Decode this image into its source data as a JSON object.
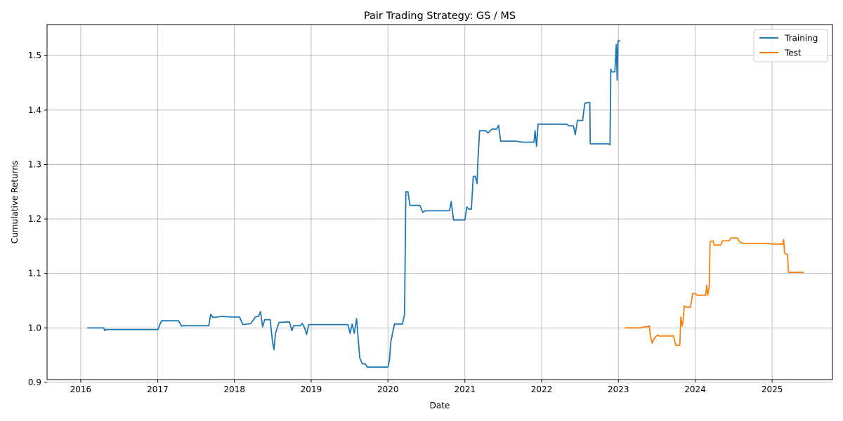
{
  "chart_data": {
    "type": "line",
    "title": "Pair Trading Strategy: GS / MS",
    "xlabel": "Date",
    "ylabel": "Cumulative Returns",
    "xlim": [
      "2015-07-25",
      "2025-10-15"
    ],
    "ylim": [
      0.905,
      1.557
    ],
    "x_ticks": [
      "2016",
      "2017",
      "2018",
      "2019",
      "2020",
      "2021",
      "2022",
      "2023",
      "2024",
      "2025"
    ],
    "y_ticks": [
      "0.9",
      "1.0",
      "1.1",
      "1.2",
      "1.3",
      "1.4",
      "1.5"
    ],
    "grid": true,
    "legend_position": "top-right",
    "series": [
      {
        "name": "Training",
        "color": "#1f77b4",
        "points": [
          [
            "2016-02-01",
            1.0
          ],
          [
            "2016-04-20",
            1.0
          ],
          [
            "2016-04-25",
            0.995
          ],
          [
            "2016-05-01",
            0.997
          ],
          [
            "2016-12-01",
            0.997
          ],
          [
            "2017-01-03",
            0.997
          ],
          [
            "2017-01-10",
            1.005
          ],
          [
            "2017-01-20",
            1.013
          ],
          [
            "2017-04-10",
            1.013
          ],
          [
            "2017-04-25",
            1.003
          ],
          [
            "2017-05-01",
            1.004
          ],
          [
            "2017-09-01",
            1.004
          ],
          [
            "2017-09-10",
            1.025
          ],
          [
            "2017-09-20",
            1.019
          ],
          [
            "2017-11-01",
            1.021
          ],
          [
            "2017-12-20",
            1.02
          ],
          [
            "2018-01-25",
            1.02
          ],
          [
            "2018-02-10",
            1.006
          ],
          [
            "2018-03-20",
            1.008
          ],
          [
            "2018-04-10",
            1.02
          ],
          [
            "2018-04-25",
            1.021
          ],
          [
            "2018-05-05",
            1.03
          ],
          [
            "2018-05-15",
            1.002
          ],
          [
            "2018-05-25",
            1.015
          ],
          [
            "2018-06-20",
            1.015
          ],
          [
            "2018-07-01",
            0.975
          ],
          [
            "2018-07-08",
            0.96
          ],
          [
            "2018-07-15",
            0.99
          ],
          [
            "2018-08-01",
            1.01
          ],
          [
            "2018-09-20",
            1.011
          ],
          [
            "2018-10-01",
            0.995
          ],
          [
            "2018-10-10",
            1.004
          ],
          [
            "2018-11-10",
            1.004
          ],
          [
            "2018-11-20",
            1.008
          ],
          [
            "2018-12-01",
            1.0
          ],
          [
            "2018-12-10",
            0.988
          ],
          [
            "2018-12-20",
            1.006
          ],
          [
            "2019-06-25",
            1.006
          ],
          [
            "2019-07-05",
            0.99
          ],
          [
            "2019-07-15",
            1.007
          ],
          [
            "2019-07-25",
            0.99
          ],
          [
            "2019-08-05",
            1.017
          ],
          [
            "2019-08-20",
            0.945
          ],
          [
            "2019-09-01",
            0.934
          ],
          [
            "2019-09-15",
            0.934
          ],
          [
            "2019-09-25",
            0.928
          ],
          [
            "2020-01-01",
            0.928
          ],
          [
            "2020-01-08",
            0.94
          ],
          [
            "2020-01-15",
            0.975
          ],
          [
            "2020-02-01",
            1.007
          ],
          [
            "2020-03-10",
            1.007
          ],
          [
            "2020-03-20",
            1.025
          ],
          [
            "2020-03-26",
            1.25
          ],
          [
            "2020-04-05",
            1.25
          ],
          [
            "2020-04-15",
            1.225
          ],
          [
            "2020-06-01",
            1.225
          ],
          [
            "2020-06-15",
            1.212
          ],
          [
            "2020-06-25",
            1.215
          ],
          [
            "2020-10-20",
            1.215
          ],
          [
            "2020-10-28",
            1.232
          ],
          [
            "2020-11-08",
            1.198
          ],
          [
            "2020-11-20",
            1.198
          ],
          [
            "2021-01-01",
            1.198
          ],
          [
            "2021-01-10",
            1.222
          ],
          [
            "2021-01-20",
            1.218
          ],
          [
            "2021-02-01",
            1.218
          ],
          [
            "2021-02-10",
            1.278
          ],
          [
            "2021-02-20",
            1.278
          ],
          [
            "2021-02-28",
            1.265
          ],
          [
            "2021-03-05",
            1.315
          ],
          [
            "2021-03-12",
            1.362
          ],
          [
            "2021-04-10",
            1.362
          ],
          [
            "2021-04-20",
            1.358
          ],
          [
            "2021-05-10",
            1.365
          ],
          [
            "2021-06-01",
            1.365
          ],
          [
            "2021-06-10",
            1.372
          ],
          [
            "2021-06-20",
            1.343
          ],
          [
            "2021-09-01",
            1.343
          ],
          [
            "2021-10-01",
            1.341
          ],
          [
            "2021-11-25",
            1.341
          ],
          [
            "2021-12-01",
            1.362
          ],
          [
            "2021-12-08",
            1.333
          ],
          [
            "2021-12-15",
            1.374
          ],
          [
            "2022-05-01",
            1.374
          ],
          [
            "2022-05-10",
            1.371
          ],
          [
            "2022-06-01",
            1.371
          ],
          [
            "2022-06-10",
            1.355
          ],
          [
            "2022-06-20",
            1.381
          ],
          [
            "2022-07-15",
            1.381
          ],
          [
            "2022-07-25",
            1.412
          ],
          [
            "2022-08-10",
            1.414
          ],
          [
            "2022-08-18",
            1.414
          ],
          [
            "2022-08-20",
            1.338
          ],
          [
            "2022-11-15",
            1.338
          ],
          [
            "2022-11-22",
            1.336
          ],
          [
            "2022-11-26",
            1.475
          ],
          [
            "2022-12-01",
            1.47
          ],
          [
            "2022-12-15",
            1.47
          ],
          [
            "2022-12-22",
            1.52
          ],
          [
            "2022-12-26",
            1.455
          ],
          [
            "2022-12-30",
            1.527
          ],
          [
            "2023-01-10",
            1.527
          ]
        ]
      },
      {
        "name": "Test",
        "color": "#ff7f0e",
        "points": [
          [
            "2023-02-01",
            1.0
          ],
          [
            "2023-04-20",
            1.0
          ],
          [
            "2023-05-05",
            1.002
          ],
          [
            "2023-05-25",
            1.002
          ],
          [
            "2023-05-28",
            1.004
          ],
          [
            "2023-06-01",
            0.988
          ],
          [
            "2023-06-10",
            0.972
          ],
          [
            "2023-06-20",
            0.98
          ],
          [
            "2023-07-05",
            0.987
          ],
          [
            "2023-07-15",
            0.985
          ],
          [
            "2023-09-20",
            0.985
          ],
          [
            "2023-10-01",
            0.968
          ],
          [
            "2023-10-20",
            0.968
          ],
          [
            "2023-10-25",
            1.02
          ],
          [
            "2023-11-01",
            1.003
          ],
          [
            "2023-11-05",
            1.015
          ],
          [
            "2023-11-10",
            1.04
          ],
          [
            "2023-11-20",
            1.038
          ],
          [
            "2023-12-10",
            1.038
          ],
          [
            "2023-12-20",
            1.063
          ],
          [
            "2024-01-01",
            1.063
          ],
          [
            "2024-01-10",
            1.06
          ],
          [
            "2024-02-20",
            1.06
          ],
          [
            "2024-02-25",
            1.078
          ],
          [
            "2024-03-01",
            1.06
          ],
          [
            "2024-03-08",
            1.075
          ],
          [
            "2024-03-12",
            1.158
          ],
          [
            "2024-03-25",
            1.16
          ],
          [
            "2024-04-01",
            1.152
          ],
          [
            "2024-05-01",
            1.152
          ],
          [
            "2024-05-10",
            1.16
          ],
          [
            "2024-06-10",
            1.16
          ],
          [
            "2024-06-20",
            1.165
          ],
          [
            "2024-07-20",
            1.165
          ],
          [
            "2024-08-01",
            1.157
          ],
          [
            "2024-08-20",
            1.155
          ],
          [
            "2024-09-01",
            1.155
          ],
          [
            "2024-12-15",
            1.155
          ],
          [
            "2025-01-01",
            1.154
          ],
          [
            "2025-02-20",
            1.154
          ],
          [
            "2025-02-25",
            1.162
          ],
          [
            "2025-03-01",
            1.137
          ],
          [
            "2025-03-15",
            1.135
          ],
          [
            "2025-03-20",
            1.102
          ],
          [
            "2025-06-01",
            1.102
          ]
        ]
      }
    ]
  }
}
